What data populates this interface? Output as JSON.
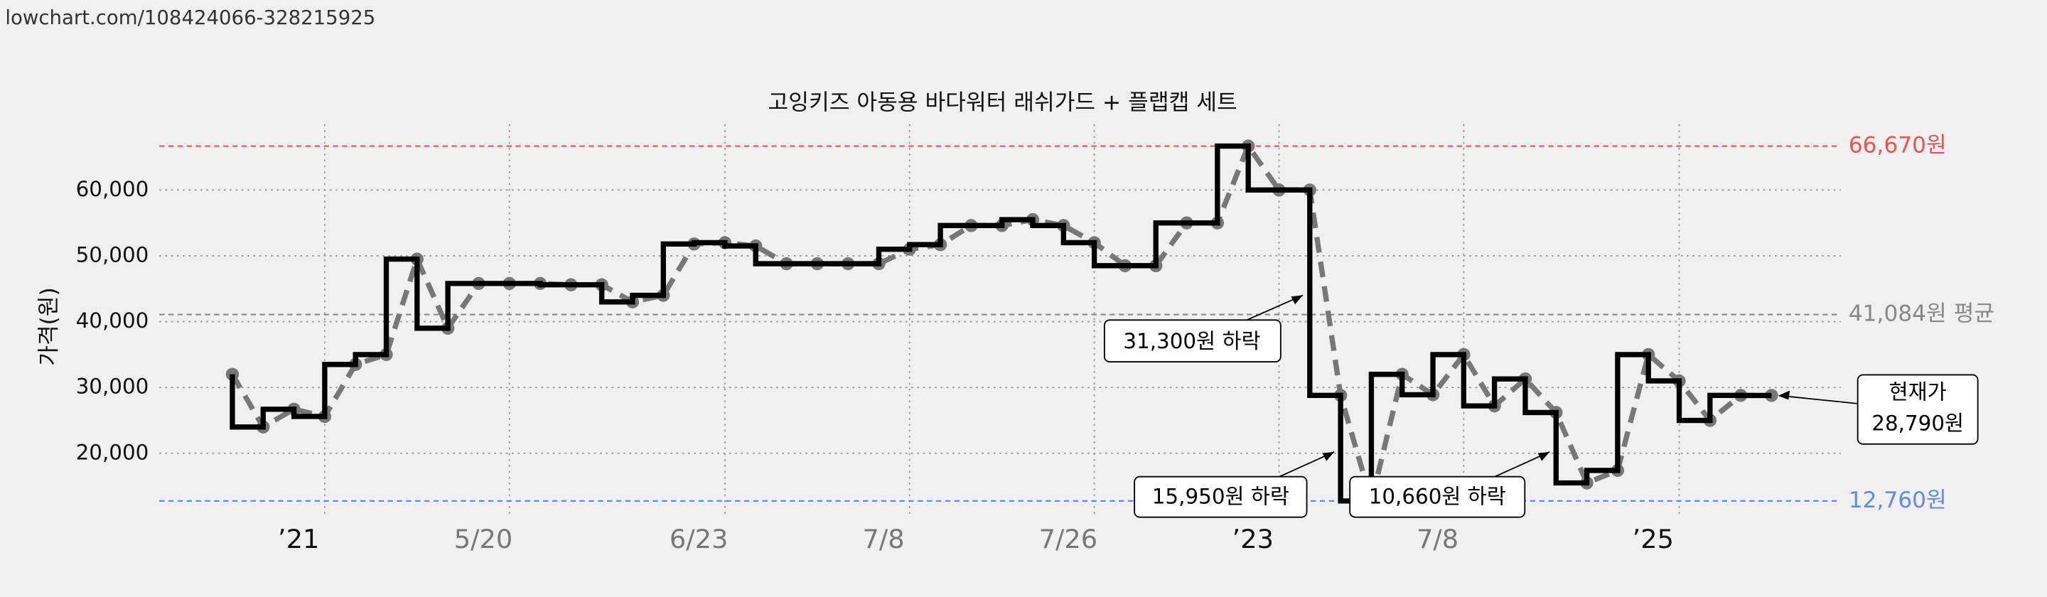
{
  "header": "lowchart.com/108424066-328215925",
  "chart_data": {
    "type": "line",
    "title": "고잉키즈 아동용 바다워터 래쉬가드 + 플랩캡 세트",
    "y_label": "가격(원)",
    "categories": [
      null,
      null,
      null,
      "’21",
      null,
      null,
      null,
      null,
      null,
      "5/20",
      null,
      null,
      null,
      null,
      null,
      null,
      "6/23",
      null,
      null,
      null,
      null,
      null,
      "7/8",
      null,
      null,
      null,
      null,
      null,
      "7/26",
      null,
      null,
      null,
      null,
      null,
      "’23",
      null,
      null,
      null,
      null,
      null,
      "7/8",
      null,
      null,
      null,
      null,
      null,
      null,
      "’25",
      null,
      null,
      null
    ],
    "values": [
      32000,
      24000,
      26700,
      25600,
      33500,
      35000,
      49500,
      39000,
      45800,
      45800,
      45800,
      45600,
      45600,
      43000,
      44000,
      51800,
      52000,
      51500,
      48800,
      48800,
      48800,
      48800,
      51000,
      51700,
      54600,
      54600,
      55500,
      54600,
      52000,
      48500,
      48500,
      55000,
      55000,
      66670,
      60000,
      60000,
      28800,
      12760,
      32000,
      28900,
      35000,
      27200,
      31300,
      26200,
      15500,
      17400,
      35000,
      31000,
      25000,
      28800,
      28790
    ],
    "step_color": "#000000",
    "dash_color": "#777777",
    "ylim": [
      10500,
      69000
    ],
    "yticks": [
      {
        "value": 20000,
        "label": "20,000"
      },
      {
        "value": 30000,
        "label": "30,000"
      },
      {
        "value": 40000,
        "label": "40,000"
      },
      {
        "value": 50000,
        "label": "50,000"
      },
      {
        "value": 60000,
        "label": "60,000"
      }
    ],
    "grid": true,
    "reference_lines": [
      {
        "value": 66670,
        "label": "66,670원",
        "color": "#e85555"
      },
      {
        "value": 41084,
        "label": "41,084원 평균",
        "color": "#888888"
      },
      {
        "value": 12760,
        "label": "12,760원",
        "color": "#6688ee"
      }
    ],
    "annotations": [
      {
        "text": "31,300원 하락"
      },
      {
        "text": "15,950원 하락"
      },
      {
        "text": "10,660원 하락"
      },
      {
        "lines": [
          "현재가",
          "28,790원"
        ]
      }
    ]
  }
}
